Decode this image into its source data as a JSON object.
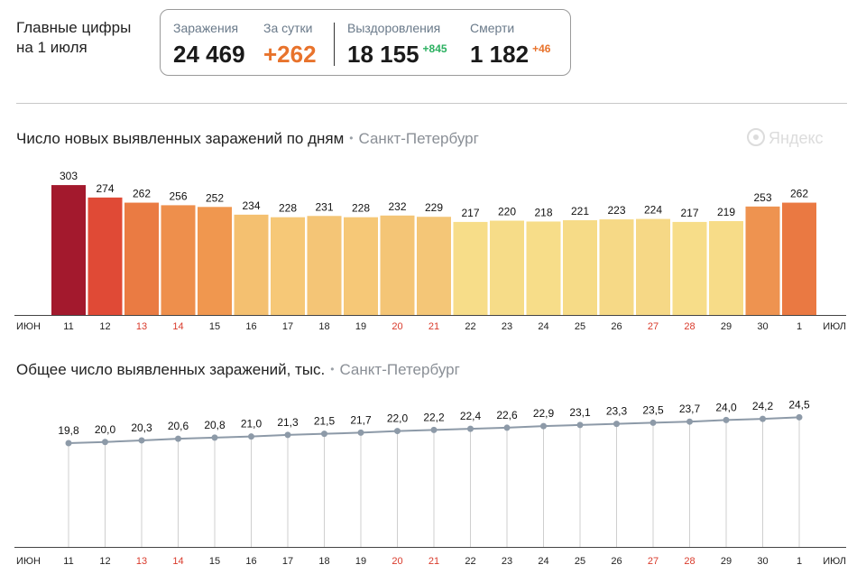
{
  "headline": {
    "line1": "Главные цифры",
    "line2": "на 1 июля"
  },
  "stats": {
    "infections": {
      "label": "Заражения",
      "value": "24 469"
    },
    "per_day": {
      "label": "За сутки",
      "value": "+262",
      "color": "#e8732c"
    },
    "recovered": {
      "label": "Выздоровления",
      "value": "18 155",
      "delta": "+845",
      "delta_color": "#2bb060"
    },
    "deaths": {
      "label": "Смерти",
      "value": "1 182",
      "delta": "+46",
      "delta_color": "#e8732c"
    }
  },
  "watermark": "Яндекс",
  "chart_data": [
    {
      "type": "bar",
      "title": "Число новых выявленных заражений по дням",
      "subtitle": "Санкт-Петербург",
      "x_start_label": "ИЮН",
      "x_end_label": "ИЮЛ",
      "categories": [
        "11",
        "12",
        "13",
        "14",
        "15",
        "16",
        "17",
        "18",
        "19",
        "20",
        "21",
        "22",
        "23",
        "24",
        "25",
        "26",
        "27",
        "28",
        "29",
        "30",
        "1"
      ],
      "weekend_categories": [
        "13",
        "14",
        "20",
        "21",
        "27",
        "28"
      ],
      "values": [
        303,
        274,
        262,
        256,
        252,
        234,
        228,
        231,
        228,
        232,
        229,
        217,
        220,
        218,
        221,
        223,
        224,
        217,
        219,
        253,
        262
      ],
      "colors": [
        "#a3192d",
        "#e04a36",
        "#ea7b43",
        "#ee8f4c",
        "#f0974f",
        "#f4c070",
        "#f6c877",
        "#f4c576",
        "#f6c877",
        "#f4c576",
        "#f4c677",
        "#f7dd89",
        "#f6dc88",
        "#f7dd89",
        "#f6db87",
        "#f6d986",
        "#f6d886",
        "#f7dd89",
        "#f7dc88",
        "#ee9350",
        "#ea7942"
      ],
      "ylim": [
        0,
        320
      ]
    },
    {
      "type": "line",
      "title": "Общее число выявленных заражений, тыс.",
      "subtitle": "Санкт-Петербург",
      "x_start_label": "ИЮН",
      "x_end_label": "ИЮЛ",
      "categories": [
        "11",
        "12",
        "13",
        "14",
        "15",
        "16",
        "17",
        "18",
        "19",
        "20",
        "21",
        "22",
        "23",
        "24",
        "25",
        "26",
        "27",
        "28",
        "29",
        "30",
        "1"
      ],
      "weekend_categories": [
        "13",
        "14",
        "20",
        "21",
        "27",
        "28"
      ],
      "value_labels": [
        "19,8",
        "20,0",
        "20,3",
        "20,6",
        "20,8",
        "21,0",
        "21,3",
        "21,5",
        "21,7",
        "22,0",
        "22,2",
        "22,4",
        "22,6",
        "22,9",
        "23,1",
        "23,3",
        "23,5",
        "23,7",
        "24,0",
        "24,2",
        "24,5"
      ],
      "values": [
        19.8,
        20.0,
        20.3,
        20.6,
        20.8,
        21.0,
        21.3,
        21.5,
        21.7,
        22.0,
        22.2,
        22.4,
        22.6,
        22.9,
        23.1,
        23.3,
        23.5,
        23.7,
        24.0,
        24.2,
        24.5
      ],
      "line_color": "#8d9aa8",
      "weekend_color": "#d93a2b"
    }
  ]
}
